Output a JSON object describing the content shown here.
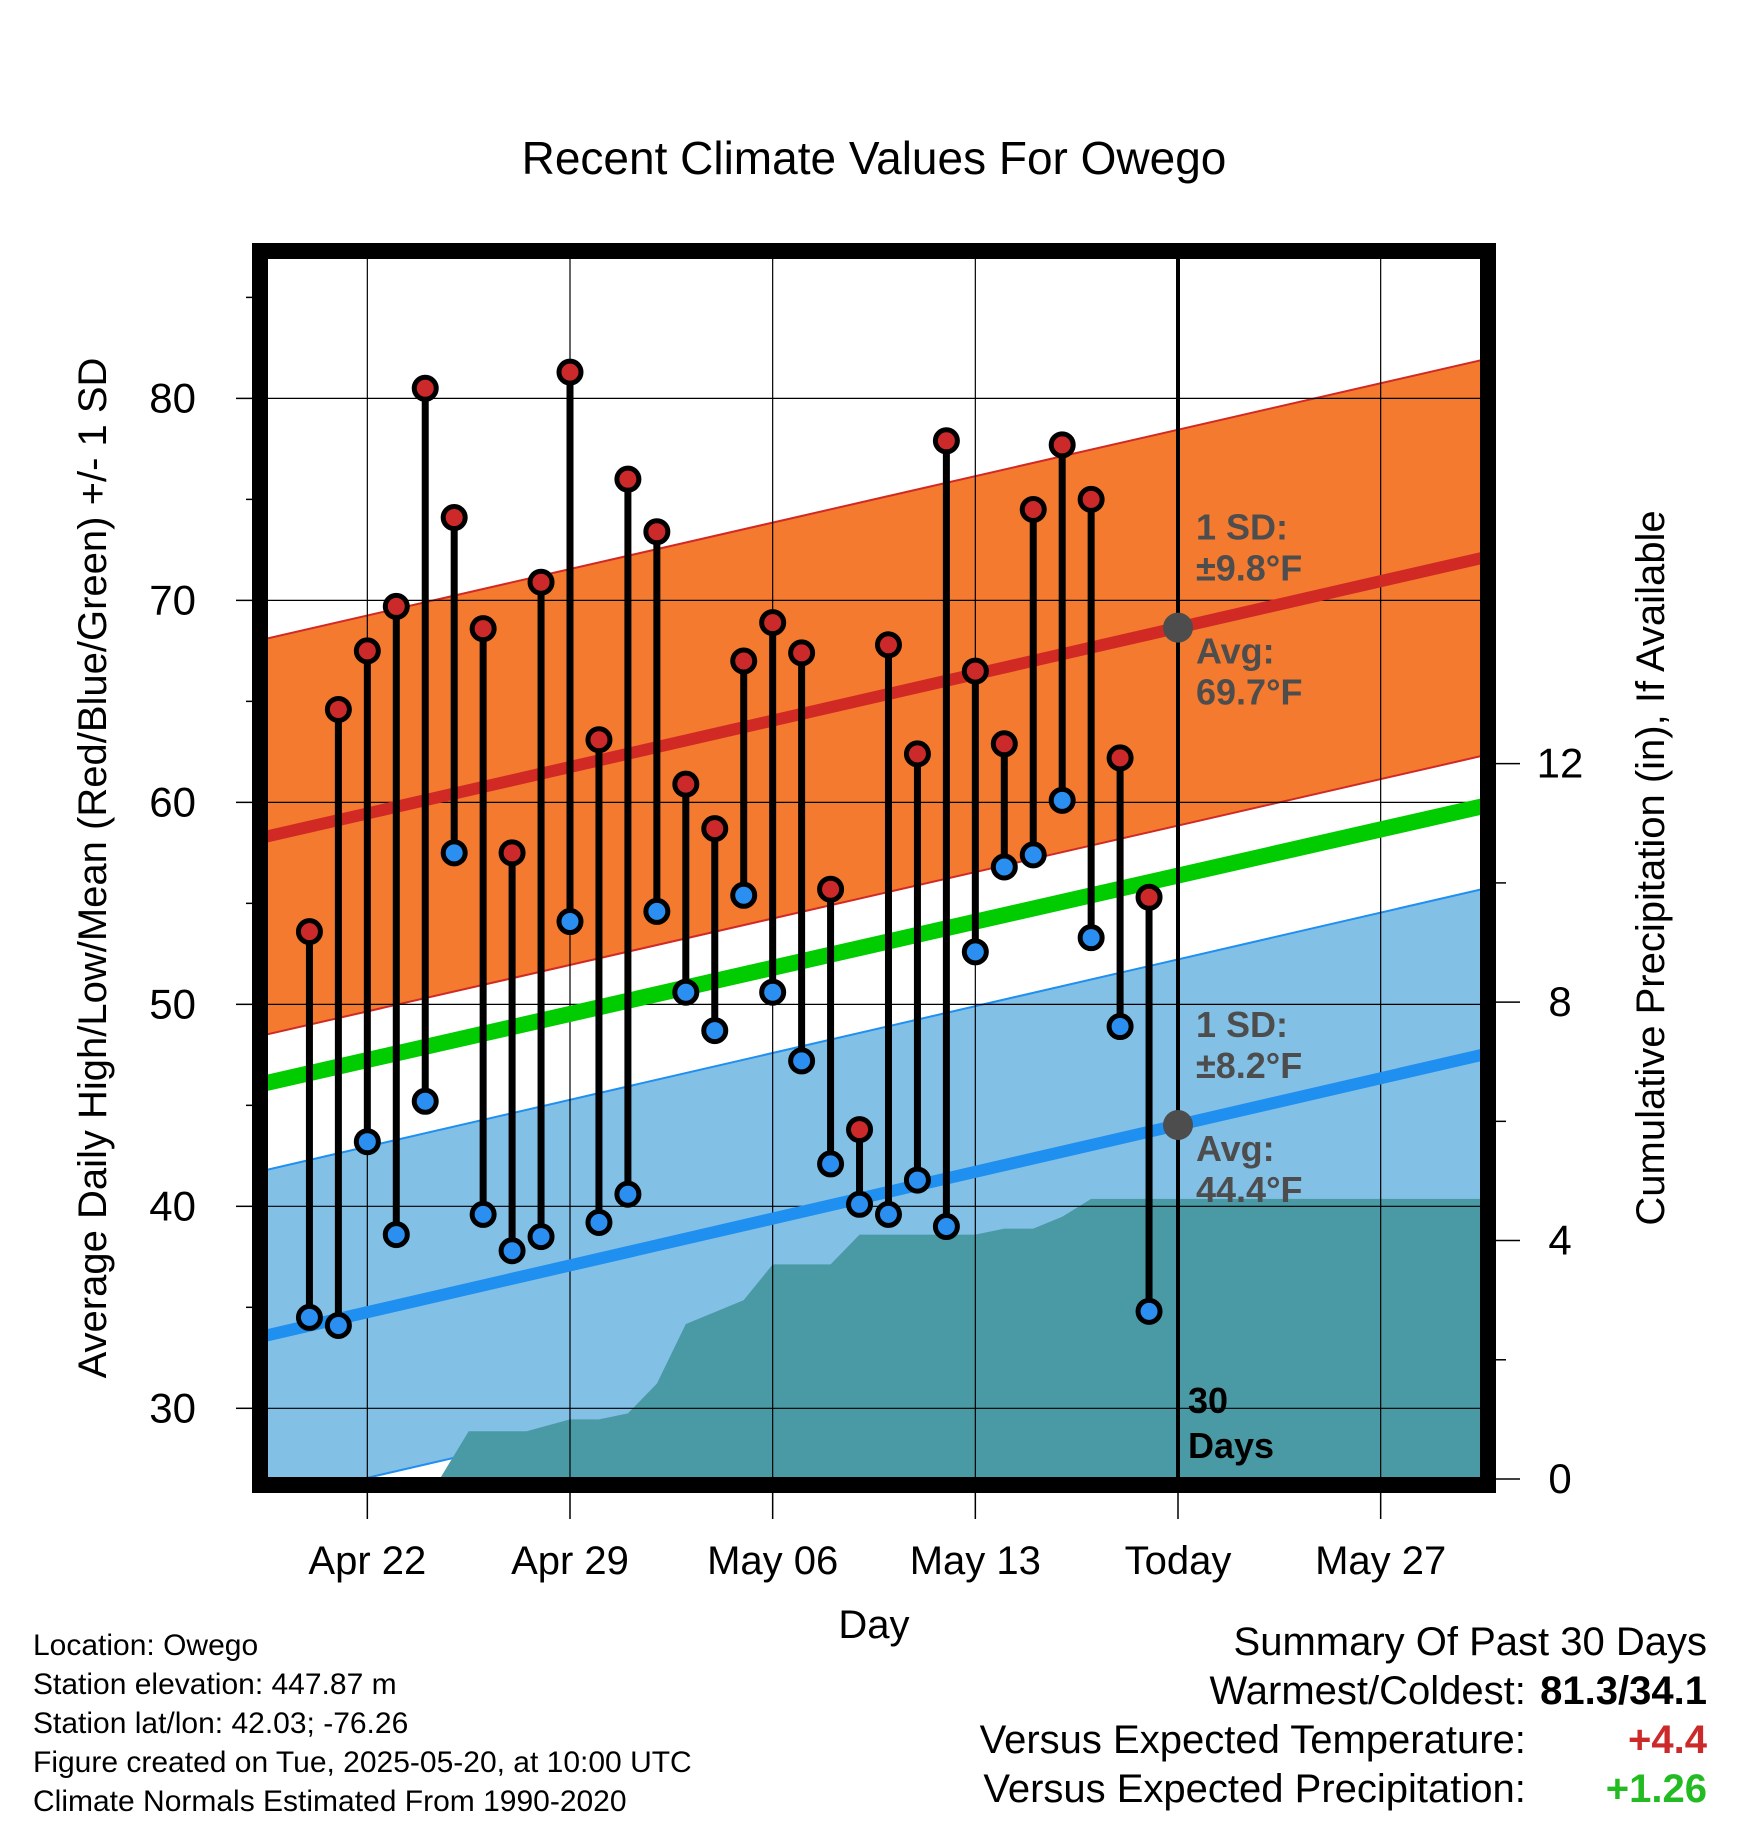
{
  "chart_data": {
    "type": "line",
    "title": "Recent Climate Values For Owego",
    "xlabel": "Day",
    "ylabel_left": "Average Daily High/Low/Mean (Red/Blue/Green) +/- 1 SD",
    "ylabel_right": "Cumulative Precipitation (in), If Available",
    "x_range_days": [
      -31.5,
      10.5
    ],
    "ylim_left": [
      26.5,
      87
    ],
    "ylim_right": [
      0,
      20.5
    ],
    "x_ticks": [
      {
        "day": -28,
        "label": "Apr 22"
      },
      {
        "day": -21,
        "label": "Apr 29"
      },
      {
        "day": -14,
        "label": "May 06"
      },
      {
        "day": -7,
        "label": "May 13"
      },
      {
        "day": 0,
        "label": "Today"
      },
      {
        "day": 7,
        "label": "May 27"
      }
    ],
    "y_ticks_left": [
      30,
      40,
      50,
      60,
      70,
      80
    ],
    "y_ticks_right": [
      0,
      4,
      8,
      12
    ],
    "grid": true,
    "daily": {
      "day": [
        -30,
        -29,
        -28,
        -27,
        -26,
        -25,
        -24,
        -23,
        -22,
        -21,
        -20,
        -19,
        -18,
        -17,
        -16,
        -15,
        -14,
        -13,
        -12,
        -11,
        -10,
        -9,
        -8,
        -7,
        -6,
        -5,
        -4,
        -3,
        -2,
        -1
      ],
      "high": [
        53.6,
        64.6,
        67.5,
        69.7,
        80.5,
        74.1,
        68.6,
        57.5,
        70.9,
        81.3,
        63.1,
        76.0,
        73.4,
        60.9,
        58.7,
        67.0,
        68.9,
        67.4,
        55.7,
        43.8,
        67.8,
        62.4,
        77.9,
        66.5,
        62.9,
        74.5,
        77.7,
        75.0,
        62.2,
        55.3
      ],
      "low": [
        34.5,
        34.1,
        43.2,
        38.6,
        45.2,
        57.5,
        39.6,
        37.8,
        38.5,
        54.1,
        39.2,
        40.6,
        54.6,
        50.6,
        48.7,
        55.4,
        50.6,
        47.2,
        42.1,
        40.1,
        39.6,
        41.3,
        39.0,
        52.6,
        56.8,
        57.4,
        60.1,
        53.3,
        48.9,
        34.8
      ]
    },
    "normals": {
      "day": [
        -31.5,
        10.5
      ],
      "avg_high": [
        58.3,
        72.1
      ],
      "high_sd": 9.8,
      "avg_mean": [
        46.1,
        59.8
      ],
      "avg_low": [
        33.6,
        47.5
      ],
      "low_sd": 8.2
    },
    "precip": {
      "day": [
        -31.5,
        -25.5,
        -24.5,
        -22.5,
        -21,
        -20,
        -19,
        -18,
        -17,
        -16,
        -15,
        -14,
        -13,
        -12,
        -11,
        -10,
        -9,
        -8,
        -7,
        -6,
        -5,
        -4,
        -3,
        -2,
        -1,
        0,
        10.5
      ],
      "cum_in": [
        0,
        0,
        0.8,
        0.8,
        1.0,
        1.0,
        1.1,
        1.6,
        2.6,
        2.8,
        3.0,
        3.6,
        3.6,
        3.6,
        4.1,
        4.1,
        4.1,
        4.1,
        4.1,
        4.2,
        4.2,
        4.4,
        4.7,
        4.7,
        4.7,
        4.7,
        4.7
      ]
    },
    "today": {
      "day": 0,
      "high_sd_label": [
        "1 SD:",
        "±9.8°F"
      ],
      "high_avg_label": [
        "Avg:",
        "69.7°F"
      ],
      "low_sd_label": [
        "1 SD:",
        "±8.2°F"
      ],
      "low_avg_label": [
        "Avg:",
        "44.4°F"
      ],
      "days_label": [
        "30",
        "Days"
      ]
    },
    "colors": {
      "high_band": "#f47a2f",
      "high_line": "#d12a24",
      "low_band": "#83c0e6",
      "low_line": "#1f8ff0",
      "mean_line": "#00cc00",
      "precip": "#4a9aa5",
      "high_dot": "#cc2a2a",
      "low_dot": "#2a8ff0",
      "annotation": "#4d4d4d"
    }
  },
  "footer": {
    "location": "Location: Owego",
    "elevation": "Station elevation: 447.87 m",
    "latlon": "Station lat/lon: 42.03; -76.26",
    "created": "Figure created on Tue, 2025-05-20, at 10:00 UTC",
    "normals": "Climate Normals Estimated From 1990-2020"
  },
  "summary": {
    "title": "Summary Of Past 30 Days",
    "warmest_label": "Warmest/Coldest:",
    "warmest_value": "81.3/34.1",
    "temp_label": "Versus Expected Temperature:",
    "temp_value": "+4.4",
    "temp_color": "#cc2a2a",
    "precip_label": "Versus Expected Precipitation:",
    "precip_value": "+1.26",
    "precip_color": "#22bb22"
  }
}
